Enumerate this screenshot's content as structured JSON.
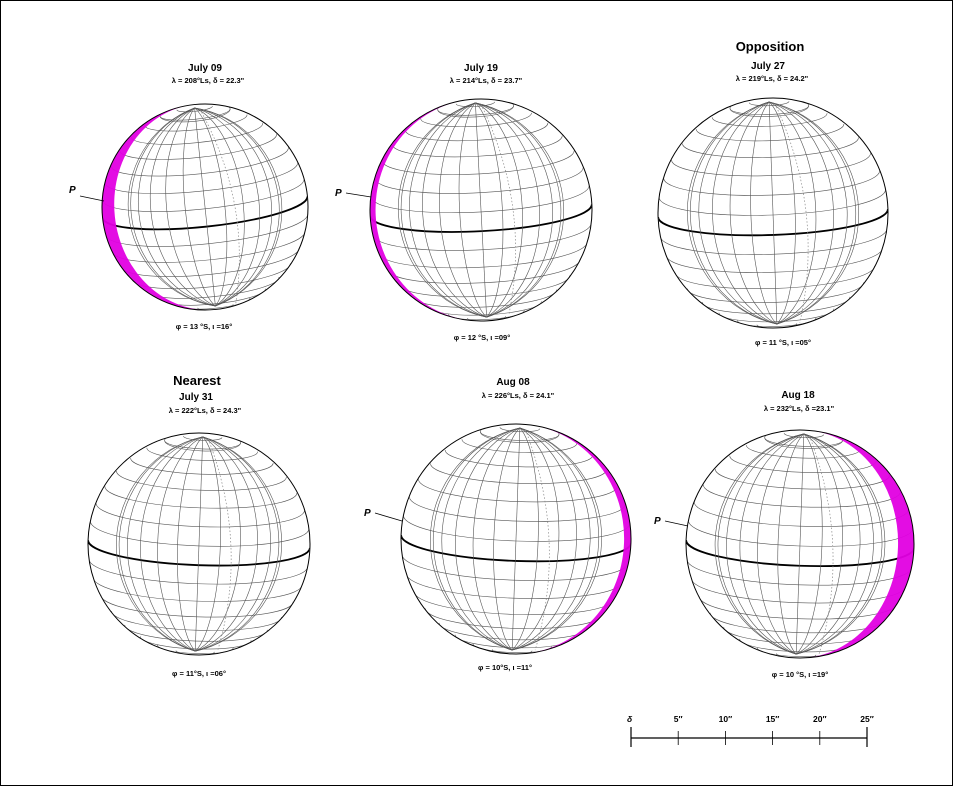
{
  "colors": {
    "phase_defect": "#e100e1",
    "grid": "#555555",
    "equator": "#000000",
    "outline": "#000000",
    "frame": "#000000"
  },
  "globes": [
    {
      "id": "globe-1",
      "heading": "",
      "date": "July 09",
      "ls_line": "λ = 208°Ls,  δ = 22.3\"",
      "phi_line": "φ = 13 °S,  ι =16°",
      "p_label": "P",
      "tilt_deg": -6,
      "defect_side": "left",
      "defect_frac": 0.06
    },
    {
      "id": "globe-2",
      "heading": "",
      "date": "July 19",
      "ls_line": "λ = 214°Ls,  δ = 23.7\"",
      "phi_line": "φ = 12 °S,  ι =09°",
      "p_label": "P",
      "tilt_deg": -3,
      "defect_side": "left",
      "defect_frac": 0.025
    },
    {
      "id": "globe-3",
      "heading": "Opposition",
      "date": "July 27",
      "ls_line": "λ = 219°Ls,  δ = 24.2\"",
      "phi_line": "φ = 11 °S,  ι =05°",
      "p_label": "",
      "tilt_deg": -2,
      "defect_side": "none",
      "defect_frac": 0
    },
    {
      "id": "globe-4",
      "heading": "Nearest",
      "date": "July 31",
      "ls_line": "λ = 222°Ls,  δ = 24.3\"",
      "phi_line": "φ = 11°S,  ι =06°",
      "p_label": "",
      "tilt_deg": 2,
      "defect_side": "none",
      "defect_frac": 0
    },
    {
      "id": "globe-5",
      "heading": "",
      "date": "Aug 08",
      "ls_line": "λ = 226°Ls,  δ = 24.1\"",
      "phi_line": "φ = 10°S,  ι =11°",
      "p_label": "P",
      "tilt_deg": 2,
      "defect_side": "right",
      "defect_frac": 0.03
    },
    {
      "id": "globe-6",
      "heading": "",
      "date": "Aug 18",
      "ls_line": "λ = 232°Ls,  δ =23.1\"",
      "phi_line": "φ = 10 °S,  ι =19°",
      "p_label": "P",
      "tilt_deg": 2,
      "defect_side": "right",
      "defect_frac": 0.07
    }
  ],
  "scale_bar": {
    "symbol": "δ",
    "ticks": [
      {
        "label": "5″",
        "value": 5
      },
      {
        "label": "10″",
        "value": 10
      },
      {
        "label": "15″",
        "value": 15
      },
      {
        "label": "20″",
        "value": 20
      },
      {
        "label": "25″",
        "value": 25
      }
    ],
    "max": 25
  }
}
